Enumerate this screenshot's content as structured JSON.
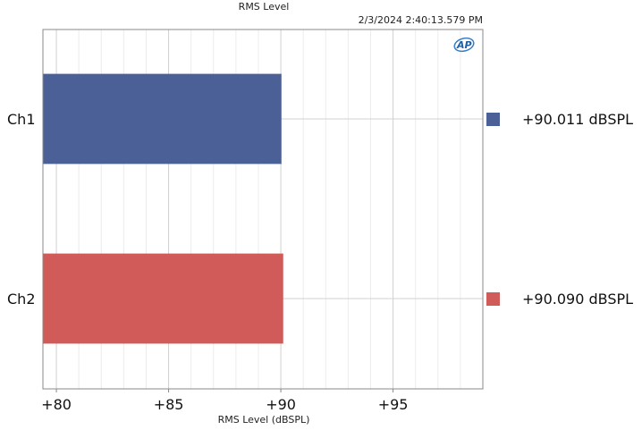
{
  "window": {
    "title": "RMS Level",
    "timestamp": "2/3/2024 2:40:13.579 PM"
  },
  "logo": {
    "text": "AP",
    "icon": "ap-logo-icon"
  },
  "colors": {
    "ch1": "#4a6096",
    "ch2": "#d15b58",
    "grid_major": "#d0d0d0",
    "grid_minor": "#ececec",
    "frame": "#888888"
  },
  "chart_data": {
    "type": "bar",
    "orientation": "horizontal",
    "title": "RMS Level",
    "xlabel": "RMS Level (dBSPL)",
    "ylabel": "",
    "categories": [
      "Ch1",
      "Ch2"
    ],
    "values": [
      90.011,
      90.09
    ],
    "value_labels": [
      "+90.011  dBSPL",
      "+90.090  dBSPL"
    ],
    "xlim": [
      79.4,
      99.0
    ],
    "xticks": [
      80,
      85,
      90,
      95
    ],
    "xtick_labels": [
      "+80",
      "+85",
      "+90",
      "+95"
    ],
    "grid": true,
    "legend": "right"
  }
}
